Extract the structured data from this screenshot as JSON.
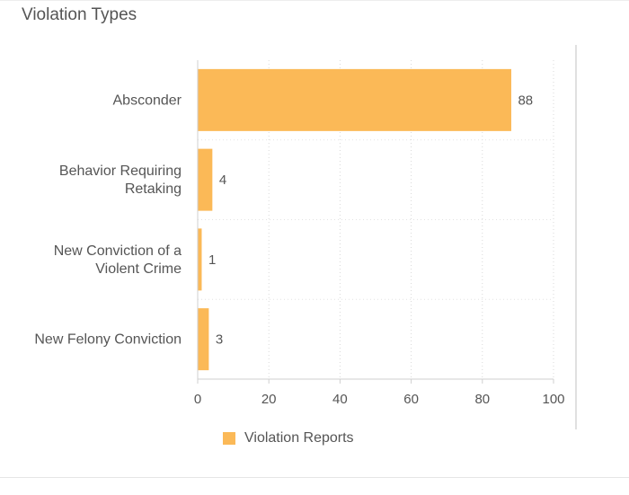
{
  "panel": {
    "title": "Violation Types"
  },
  "chart_data": {
    "type": "bar",
    "orientation": "horizontal",
    "categories": [
      "Absconder",
      "Behavior Requiring Retaking",
      "New Conviction of a Violent Crime",
      "New Felony Conviction"
    ],
    "category_label_lines": [
      [
        "Absconder"
      ],
      [
        "Behavior Requiring",
        "Retaking"
      ],
      [
        "New Conviction of a",
        "Violent Crime"
      ],
      [
        "New Felony Conviction"
      ]
    ],
    "series": [
      {
        "name": "Violation Reports",
        "values": [
          88,
          4,
          1,
          3
        ],
        "color": "#fbb957"
      }
    ],
    "data_labels": [
      "88",
      "4",
      "1",
      "3"
    ],
    "xlim": [
      0,
      100
    ],
    "xticks": [
      0,
      20,
      40,
      60,
      80,
      100
    ],
    "xtick_labels": [
      "0",
      "20",
      "40",
      "60",
      "80",
      "100"
    ],
    "grid": "dotted vertical",
    "legend_position": "bottom"
  }
}
